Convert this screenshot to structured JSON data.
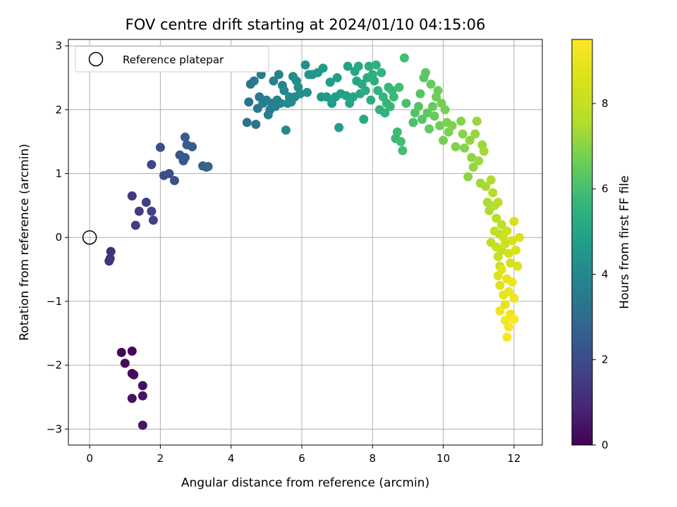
{
  "chart_data": {
    "type": "scatter",
    "title": "FOV centre drift starting at 2024/01/10 04:15:06",
    "xlabel": "Angular distance from reference (arcmin)",
    "ylabel": "Rotation from reference (arcmin)",
    "xlim": [
      -0.6,
      12.8
    ],
    "ylim": [
      -3.25,
      3.1
    ],
    "xticks": [
      0,
      2,
      4,
      6,
      8,
      10,
      12
    ],
    "yticks": [
      -3,
      -2,
      -1,
      0,
      1,
      2,
      3
    ],
    "grid": true,
    "legend": {
      "position": "top-left",
      "entries": [
        {
          "label": "Reference platepar",
          "marker": "open-circle"
        }
      ]
    },
    "reference_point": {
      "x": 0,
      "y": 0
    },
    "colorbar": {
      "label": "Hours from first FF file",
      "colormap": "viridis",
      "range": [
        0,
        9.5
      ],
      "ticks": [
        0,
        2,
        4,
        6,
        8
      ]
    },
    "points": [
      {
        "x": 0.9,
        "y": -1.8,
        "c": 0.1
      },
      {
        "x": 1.2,
        "y": -1.78,
        "c": 0.15
      },
      {
        "x": 1.0,
        "y": -1.97,
        "c": 0.2
      },
      {
        "x": 1.2,
        "y": -2.13,
        "c": 0.25
      },
      {
        "x": 1.25,
        "y": -2.15,
        "c": 0.3
      },
      {
        "x": 1.5,
        "y": -2.32,
        "c": 0.35
      },
      {
        "x": 1.2,
        "y": -2.52,
        "c": 0.4
      },
      {
        "x": 1.5,
        "y": -2.48,
        "c": 0.45
      },
      {
        "x": 1.5,
        "y": -2.94,
        "c": 0.5
      },
      {
        "x": 0.6,
        "y": -0.22,
        "c": 1.1
      },
      {
        "x": 0.58,
        "y": -0.33,
        "c": 1.15
      },
      {
        "x": 0.55,
        "y": -0.37,
        "c": 1.2
      },
      {
        "x": 1.2,
        "y": 0.65,
        "c": 1.4
      },
      {
        "x": 1.4,
        "y": 0.41,
        "c": 1.5
      },
      {
        "x": 1.3,
        "y": 0.19,
        "c": 1.55
      },
      {
        "x": 1.6,
        "y": 0.55,
        "c": 1.6
      },
      {
        "x": 1.75,
        "y": 0.41,
        "c": 1.65
      },
      {
        "x": 1.8,
        "y": 0.27,
        "c": 1.7
      },
      {
        "x": 1.75,
        "y": 1.14,
        "c": 1.8
      },
      {
        "x": 2.0,
        "y": 1.41,
        "c": 2.0
      },
      {
        "x": 2.1,
        "y": 0.97,
        "c": 2.05
      },
      {
        "x": 2.25,
        "y": 1.0,
        "c": 2.1
      },
      {
        "x": 2.4,
        "y": 0.89,
        "c": 2.15
      },
      {
        "x": 2.55,
        "y": 1.29,
        "c": 2.3
      },
      {
        "x": 2.65,
        "y": 1.2,
        "c": 2.35
      },
      {
        "x": 2.7,
        "y": 1.25,
        "c": 2.4
      },
      {
        "x": 2.7,
        "y": 1.57,
        "c": 2.45
      },
      {
        "x": 2.75,
        "y": 1.45,
        "c": 2.5
      },
      {
        "x": 2.9,
        "y": 1.42,
        "c": 2.55
      },
      {
        "x": 3.2,
        "y": 1.12,
        "c": 2.7
      },
      {
        "x": 3.3,
        "y": 1.1,
        "c": 2.75
      },
      {
        "x": 3.35,
        "y": 1.11,
        "c": 2.8
      },
      {
        "x": 4.45,
        "y": 1.8,
        "c": 3.2
      },
      {
        "x": 4.7,
        "y": 1.77,
        "c": 3.25
      },
      {
        "x": 4.5,
        "y": 2.12,
        "c": 3.3
      },
      {
        "x": 4.55,
        "y": 2.4,
        "c": 3.35
      },
      {
        "x": 4.65,
        "y": 2.45,
        "c": 3.4
      },
      {
        "x": 4.75,
        "y": 2.02,
        "c": 3.45
      },
      {
        "x": 4.8,
        "y": 2.2,
        "c": 3.5
      },
      {
        "x": 4.85,
        "y": 2.55,
        "c": 3.55
      },
      {
        "x": 4.9,
        "y": 2.1,
        "c": 3.6
      },
      {
        "x": 5.0,
        "y": 2.15,
        "c": 3.6
      },
      {
        "x": 5.05,
        "y": 1.92,
        "c": 3.65
      },
      {
        "x": 5.1,
        "y": 2.0,
        "c": 3.7
      },
      {
        "x": 5.15,
        "y": 2.1,
        "c": 3.7
      },
      {
        "x": 5.2,
        "y": 2.45,
        "c": 3.75
      },
      {
        "x": 5.25,
        "y": 2.05,
        "c": 3.8
      },
      {
        "x": 5.3,
        "y": 2.15,
        "c": 3.8
      },
      {
        "x": 5.35,
        "y": 2.55,
        "c": 3.85
      },
      {
        "x": 5.4,
        "y": 2.1,
        "c": 3.9
      },
      {
        "x": 5.45,
        "y": 2.38,
        "c": 3.9
      },
      {
        "x": 5.5,
        "y": 2.3,
        "c": 3.95
      },
      {
        "x": 5.55,
        "y": 1.68,
        "c": 4.0
      },
      {
        "x": 5.6,
        "y": 2.1,
        "c": 4.0
      },
      {
        "x": 5.65,
        "y": 2.2,
        "c": 4.05
      },
      {
        "x": 5.7,
        "y": 2.12,
        "c": 4.1
      },
      {
        "x": 5.75,
        "y": 2.52,
        "c": 4.1
      },
      {
        "x": 5.8,
        "y": 2.2,
        "c": 4.15
      },
      {
        "x": 5.85,
        "y": 2.45,
        "c": 4.2
      },
      {
        "x": 5.9,
        "y": 2.35,
        "c": 4.2
      },
      {
        "x": 5.95,
        "y": 2.25,
        "c": 4.25
      },
      {
        "x": 6.1,
        "y": 2.7,
        "c": 4.3
      },
      {
        "x": 6.15,
        "y": 2.27,
        "c": 4.35
      },
      {
        "x": 6.2,
        "y": 2.55,
        "c": 4.4
      },
      {
        "x": 6.3,
        "y": 2.55,
        "c": 4.4
      },
      {
        "x": 6.45,
        "y": 2.58,
        "c": 4.5
      },
      {
        "x": 6.55,
        "y": 2.2,
        "c": 4.55
      },
      {
        "x": 6.6,
        "y": 2.65,
        "c": 4.6
      },
      {
        "x": 6.7,
        "y": 2.2,
        "c": 4.6
      },
      {
        "x": 6.8,
        "y": 2.43,
        "c": 4.7
      },
      {
        "x": 6.85,
        "y": 2.1,
        "c": 4.7
      },
      {
        "x": 6.95,
        "y": 2.2,
        "c": 4.75
      },
      {
        "x": 7.0,
        "y": 2.5,
        "c": 4.8
      },
      {
        "x": 7.05,
        "y": 1.72,
        "c": 4.8
      },
      {
        "x": 7.1,
        "y": 2.25,
        "c": 4.85
      },
      {
        "x": 7.25,
        "y": 2.22,
        "c": 4.9
      },
      {
        "x": 7.3,
        "y": 2.68,
        "c": 4.95
      },
      {
        "x": 7.35,
        "y": 2.1,
        "c": 5.0
      },
      {
        "x": 7.45,
        "y": 2.2,
        "c": 5.0
      },
      {
        "x": 7.5,
        "y": 2.6,
        "c": 5.05
      },
      {
        "x": 7.55,
        "y": 2.45,
        "c": 5.1
      },
      {
        "x": 7.6,
        "y": 2.68,
        "c": 5.1
      },
      {
        "x": 7.65,
        "y": 2.25,
        "c": 5.15
      },
      {
        "x": 7.7,
        "y": 2.4,
        "c": 5.2
      },
      {
        "x": 7.75,
        "y": 1.85,
        "c": 5.2
      },
      {
        "x": 7.8,
        "y": 2.3,
        "c": 5.25
      },
      {
        "x": 7.85,
        "y": 2.5,
        "c": 5.3
      },
      {
        "x": 7.9,
        "y": 2.68,
        "c": 5.3
      },
      {
        "x": 7.95,
        "y": 2.15,
        "c": 5.35
      },
      {
        "x": 8.0,
        "y": 2.55,
        "c": 5.4
      },
      {
        "x": 8.05,
        "y": 2.45,
        "c": 5.4
      },
      {
        "x": 8.1,
        "y": 2.7,
        "c": 5.45
      },
      {
        "x": 8.15,
        "y": 2.3,
        "c": 5.5
      },
      {
        "x": 8.2,
        "y": 2.0,
        "c": 5.5
      },
      {
        "x": 8.25,
        "y": 2.58,
        "c": 5.55
      },
      {
        "x": 8.3,
        "y": 2.2,
        "c": 5.6
      },
      {
        "x": 8.35,
        "y": 1.95,
        "c": 5.6
      },
      {
        "x": 8.4,
        "y": 2.1,
        "c": 5.65
      },
      {
        "x": 8.45,
        "y": 2.35,
        "c": 5.7
      },
      {
        "x": 8.5,
        "y": 2.05,
        "c": 5.7
      },
      {
        "x": 8.55,
        "y": 2.3,
        "c": 5.75
      },
      {
        "x": 8.6,
        "y": 2.2,
        "c": 5.8
      },
      {
        "x": 8.65,
        "y": 1.55,
        "c": 5.8
      },
      {
        "x": 8.7,
        "y": 1.65,
        "c": 5.85
      },
      {
        "x": 8.75,
        "y": 2.35,
        "c": 5.9
      },
      {
        "x": 8.8,
        "y": 1.5,
        "c": 5.9
      },
      {
        "x": 8.85,
        "y": 1.36,
        "c": 5.95
      },
      {
        "x": 8.9,
        "y": 2.81,
        "c": 6.0
      },
      {
        "x": 8.95,
        "y": 2.1,
        "c": 6.0
      },
      {
        "x": 9.15,
        "y": 1.8,
        "c": 6.1
      },
      {
        "x": 9.2,
        "y": 1.95,
        "c": 6.15
      },
      {
        "x": 9.3,
        "y": 2.05,
        "c": 6.2
      },
      {
        "x": 9.35,
        "y": 2.25,
        "c": 6.25
      },
      {
        "x": 9.4,
        "y": 1.85,
        "c": 6.3
      },
      {
        "x": 9.45,
        "y": 2.5,
        "c": 6.3
      },
      {
        "x": 9.5,
        "y": 2.58,
        "c": 6.35
      },
      {
        "x": 9.55,
        "y": 1.95,
        "c": 6.4
      },
      {
        "x": 9.6,
        "y": 1.7,
        "c": 6.45
      },
      {
        "x": 9.65,
        "y": 2.4,
        "c": 6.5
      },
      {
        "x": 9.7,
        "y": 2.05,
        "c": 6.5
      },
      {
        "x": 9.75,
        "y": 1.9,
        "c": 6.55
      },
      {
        "x": 9.8,
        "y": 2.2,
        "c": 6.6
      },
      {
        "x": 9.85,
        "y": 2.3,
        "c": 6.6
      },
      {
        "x": 9.9,
        "y": 1.75,
        "c": 6.65
      },
      {
        "x": 9.95,
        "y": 2.1,
        "c": 6.7
      },
      {
        "x": 10.0,
        "y": 1.52,
        "c": 6.7
      },
      {
        "x": 10.05,
        "y": 2.0,
        "c": 6.75
      },
      {
        "x": 10.1,
        "y": 1.8,
        "c": 6.8
      },
      {
        "x": 10.15,
        "y": 1.65,
        "c": 6.8
      },
      {
        "x": 10.25,
        "y": 1.75,
        "c": 6.85
      },
      {
        "x": 10.35,
        "y": 1.42,
        "c": 6.9
      },
      {
        "x": 10.5,
        "y": 1.82,
        "c": 6.95
      },
      {
        "x": 10.55,
        "y": 1.62,
        "c": 7.0
      },
      {
        "x": 10.6,
        "y": 1.4,
        "c": 7.0
      },
      {
        "x": 10.7,
        "y": 0.95,
        "c": 7.05
      },
      {
        "x": 10.75,
        "y": 1.52,
        "c": 7.1
      },
      {
        "x": 10.8,
        "y": 1.25,
        "c": 7.1
      },
      {
        "x": 10.85,
        "y": 1.1,
        "c": 7.15
      },
      {
        "x": 10.9,
        "y": 1.62,
        "c": 7.2
      },
      {
        "x": 10.95,
        "y": 1.82,
        "c": 7.2
      },
      {
        "x": 11.0,
        "y": 1.2,
        "c": 7.25
      },
      {
        "x": 11.05,
        "y": 0.85,
        "c": 7.3
      },
      {
        "x": 11.1,
        "y": 1.45,
        "c": 7.3
      },
      {
        "x": 11.15,
        "y": 1.35,
        "c": 7.35
      },
      {
        "x": 11.2,
        "y": 0.8,
        "c": 7.4
      },
      {
        "x": 11.25,
        "y": 0.55,
        "c": 7.45
      },
      {
        "x": 11.3,
        "y": 0.42,
        "c": 7.5
      },
      {
        "x": 11.35,
        "y": 0.9,
        "c": 7.55
      },
      {
        "x": 11.4,
        "y": 0.7,
        "c": 7.6
      },
      {
        "x": 11.45,
        "y": 0.5,
        "c": 7.65
      },
      {
        "x": 11.5,
        "y": 0.3,
        "c": 7.7
      },
      {
        "x": 11.55,
        "y": 0.55,
        "c": 7.75
      },
      {
        "x": 11.6,
        "y": 0.05,
        "c": 7.8
      },
      {
        "x": 11.65,
        "y": 0.2,
        "c": 7.85
      },
      {
        "x": 11.35,
        "y": -0.08,
        "c": 7.9
      },
      {
        "x": 11.45,
        "y": 0.1,
        "c": 7.95
      },
      {
        "x": 11.5,
        "y": -0.15,
        "c": 8.0
      },
      {
        "x": 11.55,
        "y": -0.3,
        "c": 8.05
      },
      {
        "x": 11.6,
        "y": -0.45,
        "c": 8.1
      },
      {
        "x": 11.65,
        "y": -0.2,
        "c": 8.15
      },
      {
        "x": 11.7,
        "y": 0.0,
        "c": 8.2
      },
      {
        "x": 11.75,
        "y": -0.1,
        "c": 8.25
      },
      {
        "x": 11.8,
        "y": 0.1,
        "c": 8.3
      },
      {
        "x": 11.85,
        "y": -0.25,
        "c": 8.35
      },
      {
        "x": 11.9,
        "y": -0.4,
        "c": 8.4
      },
      {
        "x": 11.95,
        "y": -0.05,
        "c": 8.45
      },
      {
        "x": 12.0,
        "y": 0.25,
        "c": 8.5
      },
      {
        "x": 12.05,
        "y": -0.2,
        "c": 8.55
      },
      {
        "x": 12.1,
        "y": -0.45,
        "c": 8.6
      },
      {
        "x": 12.15,
        "y": 0.0,
        "c": 8.6
      },
      {
        "x": 11.55,
        "y": -0.6,
        "c": 8.7
      },
      {
        "x": 11.6,
        "y": -0.75,
        "c": 8.75
      },
      {
        "x": 11.65,
        "y": -0.5,
        "c": 8.8
      },
      {
        "x": 11.7,
        "y": -0.9,
        "c": 8.85
      },
      {
        "x": 11.75,
        "y": -1.05,
        "c": 8.9
      },
      {
        "x": 11.8,
        "y": -0.65,
        "c": 8.95
      },
      {
        "x": 11.85,
        "y": -0.85,
        "c": 9.0
      },
      {
        "x": 11.9,
        "y": -1.2,
        "c": 9.05
      },
      {
        "x": 11.95,
        "y": -0.7,
        "c": 9.1
      },
      {
        "x": 12.0,
        "y": -0.95,
        "c": 9.15
      },
      {
        "x": 11.6,
        "y": -1.15,
        "c": 9.2
      },
      {
        "x": 11.75,
        "y": -1.3,
        "c": 9.25
      },
      {
        "x": 11.85,
        "y": -1.4,
        "c": 9.3
      },
      {
        "x": 11.8,
        "y": -1.56,
        "c": 9.35
      },
      {
        "x": 12.0,
        "y": -1.28,
        "c": 9.4
      }
    ]
  }
}
